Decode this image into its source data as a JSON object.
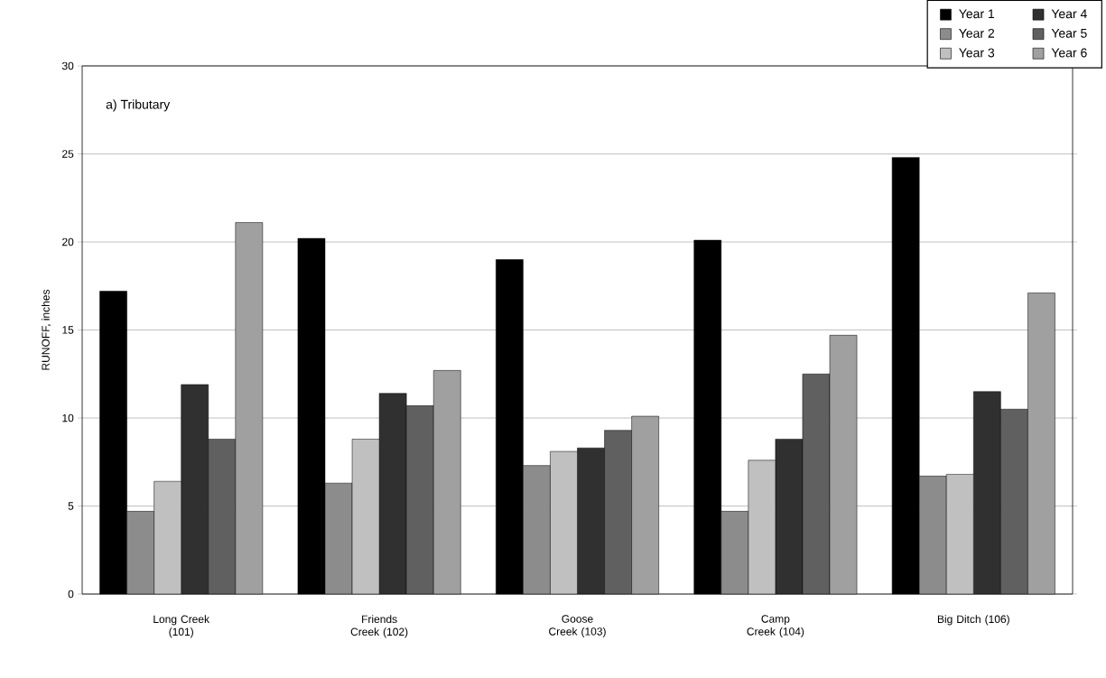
{
  "chart_data": {
    "type": "bar",
    "ylabel": "RUNOFF, inches",
    "annotations": [
      "a) Tributary"
    ],
    "categories": [
      "Long Creek (101)",
      "Friends Creek (102)",
      "Goose Creek (103)",
      "Camp Creek (104)",
      "Big Ditch (106)"
    ],
    "series": [
      {
        "name": "Year 1",
        "color": "#000000",
        "values": [
          17.2,
          20.2,
          19.0,
          20.1,
          24.8
        ]
      },
      {
        "name": "Year 2",
        "color": "#8c8c8c",
        "values": [
          4.7,
          6.3,
          7.3,
          4.7,
          6.7
        ]
      },
      {
        "name": "Year 3",
        "color": "#c0c0c0",
        "values": [
          6.4,
          8.8,
          8.1,
          7.6,
          6.8
        ]
      },
      {
        "name": "Year 4",
        "color": "#303030",
        "values": [
          11.9,
          11.4,
          8.3,
          8.8,
          11.5
        ]
      },
      {
        "name": "Year 5",
        "color": "#606060",
        "values": [
          8.8,
          10.7,
          9.3,
          12.5,
          10.5
        ]
      },
      {
        "name": "Year 6",
        "color": "#a0a0a0",
        "values": [
          21.1,
          12.7,
          10.1,
          14.7,
          17.1
        ]
      }
    ],
    "ylim": [
      0,
      30
    ],
    "yticks": [
      0,
      5,
      10,
      15,
      20,
      25,
      30
    ],
    "grid": "y",
    "legend": "top right"
  }
}
